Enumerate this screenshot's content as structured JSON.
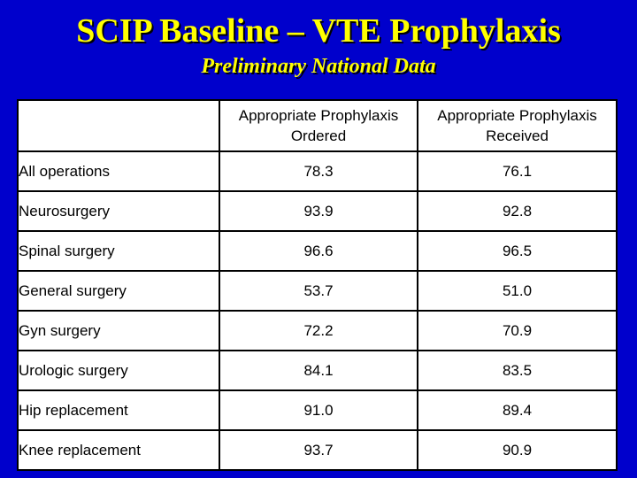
{
  "title": "SCIP Baseline – VTE Prophylaxis",
  "subtitle": "Preliminary National Data",
  "table": {
    "headers": [
      "",
      "Appropriate Prophylaxis Ordered",
      "Appropriate Prophylaxis Received"
    ],
    "rows": [
      {
        "label": "All operations",
        "ordered": "78.3",
        "received": "76.1"
      },
      {
        "label": "Neurosurgery",
        "ordered": "93.9",
        "received": "92.8"
      },
      {
        "label": "Spinal surgery",
        "ordered": "96.6",
        "received": "96.5"
      },
      {
        "label": "General surgery",
        "ordered": "53.7",
        "received": "51.0"
      },
      {
        "label": "Gyn surgery",
        "ordered": "72.2",
        "received": "70.9"
      },
      {
        "label": "Urologic surgery",
        "ordered": "84.1",
        "received": "83.5"
      },
      {
        "label": "Hip replacement",
        "ordered": "91.0",
        "received": "89.4"
      },
      {
        "label": "Knee replacement",
        "ordered": "93.7",
        "received": "90.9"
      }
    ]
  },
  "colors": {
    "background": "#0000cc",
    "title": "#ffff00",
    "table_background": "#ffffff"
  }
}
